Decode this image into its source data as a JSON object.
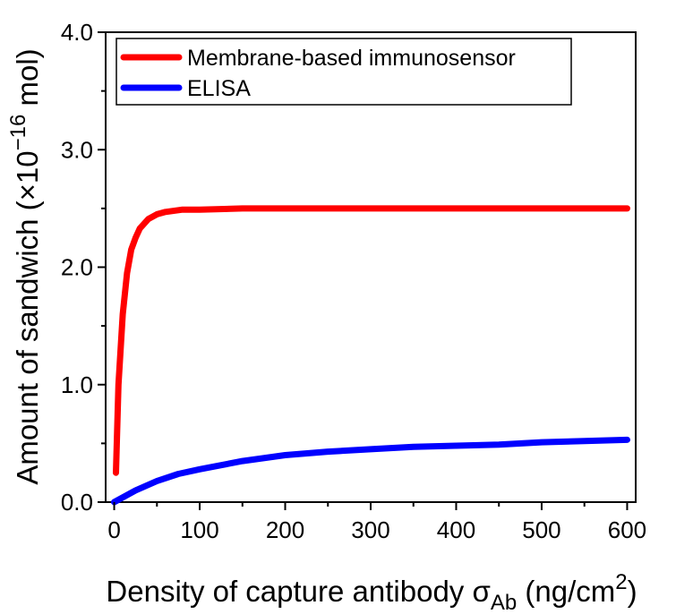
{
  "chart_data": {
    "type": "line",
    "title": "",
    "xlabel": {
      "main": "Density of capture antibody σ",
      "sub": "Ab",
      "unit_pre": " (ng/cm",
      "unit_sup": "2",
      "unit_post": ")"
    },
    "ylabel": {
      "main": "Amount of sandwich (×10",
      "sup": "−16",
      "post": " mol)"
    },
    "xlim": [
      -10,
      610
    ],
    "ylim": [
      0,
      4.0
    ],
    "xticks": [
      {
        "value": 0,
        "label": "0"
      },
      {
        "value": 100,
        "label": "100"
      },
      {
        "value": 200,
        "label": "200"
      },
      {
        "value": 300,
        "label": "300"
      },
      {
        "value": 400,
        "label": "400"
      },
      {
        "value": 500,
        "label": "500"
      },
      {
        "value": 600,
        "label": "600"
      }
    ],
    "yticks": [
      {
        "value": 0,
        "label": "0.0"
      },
      {
        "value": 1,
        "label": "1.0"
      },
      {
        "value": 2,
        "label": "2.0"
      },
      {
        "value": 3,
        "label": "3.0"
      },
      {
        "value": 4,
        "label": "4.0"
      }
    ],
    "grid": false,
    "legend_position": "top-left",
    "series": [
      {
        "name": "Membrane-based immunosensor",
        "color": "#ff0000",
        "x": [
          2,
          5,
          10,
          15,
          20,
          25,
          30,
          40,
          50,
          60,
          80,
          100,
          150,
          200,
          300,
          400,
          500,
          600
        ],
        "y": [
          0.25,
          1.0,
          1.6,
          1.95,
          2.15,
          2.25,
          2.33,
          2.41,
          2.45,
          2.47,
          2.49,
          2.49,
          2.5,
          2.5,
          2.5,
          2.5,
          2.5,
          2.5
        ]
      },
      {
        "name": "ELISA",
        "color": "#0000ff",
        "x": [
          0,
          25,
          50,
          75,
          100,
          150,
          200,
          250,
          300,
          350,
          400,
          450,
          500,
          550,
          600
        ],
        "y": [
          0.0,
          0.1,
          0.18,
          0.24,
          0.28,
          0.35,
          0.4,
          0.43,
          0.45,
          0.47,
          0.48,
          0.49,
          0.51,
          0.52,
          0.53
        ]
      }
    ]
  }
}
